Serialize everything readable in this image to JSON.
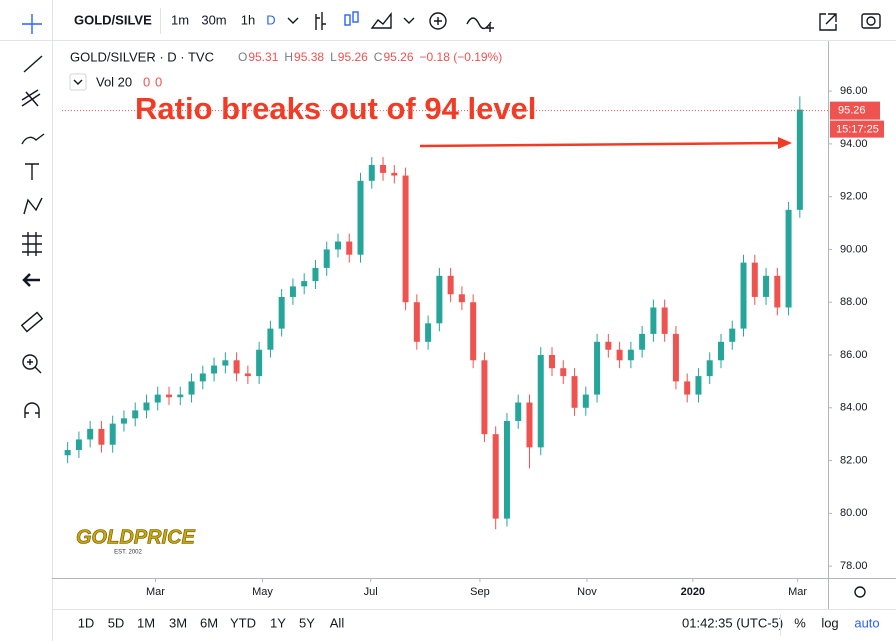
{
  "toolbar": {
    "symbol": "GOLD/SILVE",
    "intervals": [
      "1m",
      "30m",
      "1h",
      "D"
    ]
  },
  "chart_data": {
    "type": "candlestick",
    "legend": {
      "symbol": "GOLD/SILVER · D · TVC",
      "ohlc": [
        {
          "key": "O",
          "value": "95.31"
        },
        {
          "key": "H",
          "value": "95.38"
        },
        {
          "key": "L",
          "value": "95.26"
        },
        {
          "key": "C",
          "value": "95.26"
        }
      ],
      "change": "−0.18 (−0.19%)",
      "volume": "Vol 20",
      "volume_values": [
        "0",
        "0"
      ]
    },
    "annotation": "Ratio breaks out of 94 level",
    "logo": "GOLDPRICE",
    "logo_sub": "EST. 2002",
    "up_color": "#26a69a",
    "down_color": "#ef5350",
    "open": [
      82.2,
      82.4,
      82.8,
      83.2,
      82.6,
      83.4,
      83.6,
      83.9,
      84.2,
      84.5,
      84.4,
      84.5,
      85.0,
      85.3,
      85.6,
      85.8,
      85.3,
      85.2,
      86.2,
      87.0,
      88.2,
      88.6,
      88.8,
      89.3,
      90.0,
      90.3,
      89.8,
      92.6,
      93.2,
      92.9,
      92.8,
      88.0,
      86.5,
      87.2,
      89.0,
      88.3,
      88.0,
      85.8,
      83.0,
      79.8,
      83.5,
      84.2,
      82.5,
      86.0,
      85.5,
      85.2,
      84.0,
      84.5,
      86.5,
      86.2,
      85.8,
      86.2,
      86.8,
      87.8,
      86.8,
      85.0,
      84.5,
      85.2,
      85.8,
      86.5,
      87.0,
      89.5,
      88.2,
      89.0,
      87.8,
      91.5
    ],
    "high": [
      82.7,
      83.1,
      83.5,
      83.5,
      83.7,
      83.9,
      84.2,
      84.5,
      84.8,
      84.8,
      84.8,
      85.3,
      85.6,
      85.9,
      86.1,
      86.1,
      85.6,
      86.5,
      87.3,
      88.5,
      88.9,
      89.1,
      89.6,
      90.3,
      90.6,
      90.6,
      92.9,
      93.5,
      93.5,
      93.2,
      93.1,
      88.3,
      87.5,
      89.3,
      89.3,
      88.6,
      88.3,
      86.1,
      83.3,
      83.8,
      84.5,
      84.5,
      86.3,
      86.3,
      85.8,
      85.5,
      84.8,
      86.8,
      86.8,
      86.5,
      86.5,
      87.1,
      88.1,
      88.1,
      87.1,
      85.3,
      85.5,
      86.1,
      86.8,
      87.3,
      89.8,
      89.8,
      89.3,
      89.3,
      91.8,
      95.8
    ],
    "low": [
      81.9,
      82.1,
      82.5,
      82.3,
      82.3,
      83.1,
      83.3,
      83.6,
      83.9,
      84.1,
      84.1,
      84.2,
      84.7,
      85.0,
      85.3,
      85.0,
      84.9,
      84.9,
      85.9,
      86.7,
      87.9,
      88.3,
      88.5,
      89.0,
      89.7,
      89.5,
      89.5,
      92.3,
      92.6,
      92.5,
      87.7,
      86.2,
      86.2,
      86.9,
      88.0,
      87.7,
      85.5,
      82.7,
      79.4,
      79.5,
      83.2,
      81.7,
      82.2,
      85.2,
      84.9,
      83.7,
      83.7,
      84.2,
      85.9,
      85.5,
      85.5,
      85.9,
      86.5,
      86.5,
      84.7,
      84.2,
      84.2,
      84.9,
      85.5,
      86.2,
      86.7,
      87.9,
      87.9,
      87.5,
      87.5,
      91.2
    ],
    "close": [
      82.4,
      82.8,
      83.2,
      82.6,
      83.4,
      83.6,
      83.9,
      84.2,
      84.5,
      84.4,
      84.5,
      85.0,
      85.3,
      85.6,
      85.8,
      85.3,
      85.2,
      86.2,
      87.0,
      88.2,
      88.6,
      88.8,
      89.3,
      90.0,
      90.3,
      89.8,
      92.6,
      93.2,
      92.9,
      92.8,
      88.0,
      86.5,
      87.2,
      89.0,
      88.3,
      88.0,
      85.8,
      83.0,
      79.8,
      83.5,
      84.2,
      82.5,
      86.0,
      85.5,
      85.2,
      84.0,
      84.5,
      86.5,
      86.2,
      85.8,
      86.2,
      86.8,
      87.8,
      86.8,
      85.0,
      84.5,
      85.2,
      85.8,
      86.5,
      87.0,
      89.5,
      88.2,
      89.0,
      87.8,
      91.5,
      95.3
    ],
    "last_price": 95.26,
    "last_time": "15:17:25",
    "xlim": [
      0,
      68
    ],
    "xticks": [
      {
        "value": 8.3,
        "label": "Mar"
      },
      {
        "value": 17.8,
        "label": "May"
      },
      {
        "value": 27.4,
        "label": "Jul"
      },
      {
        "value": 37.1,
        "label": "Sep"
      },
      {
        "value": 46.6,
        "label": "Nov"
      },
      {
        "value": 56.0,
        "label": "2020"
      },
      {
        "value": 65.3,
        "label": "Mar"
      }
    ],
    "ylim": [
      77.55,
      97.86
    ],
    "yticks": [
      {
        "value": 78,
        "label": "78.00"
      },
      {
        "value": 80,
        "label": "80.00"
      },
      {
        "value": 82,
        "label": "82.00"
      },
      {
        "value": 84,
        "label": "84.00"
      },
      {
        "value": 86,
        "label": "86.00"
      },
      {
        "value": 88,
        "label": "88.00"
      },
      {
        "value": 90,
        "label": "90.00"
      },
      {
        "value": 92,
        "label": "92.00"
      },
      {
        "value": 94,
        "label": "94.00"
      },
      {
        "value": 96,
        "label": "96.00"
      }
    ]
  },
  "bottom_bar": {
    "ranges": [
      "1D",
      "5D",
      "1M",
      "3M",
      "6M",
      "YTD",
      "1Y",
      "5Y",
      "All"
    ],
    "clock": "01:42:35 (UTC-5)",
    "options": [
      "%",
      "log",
      "auto"
    ]
  }
}
